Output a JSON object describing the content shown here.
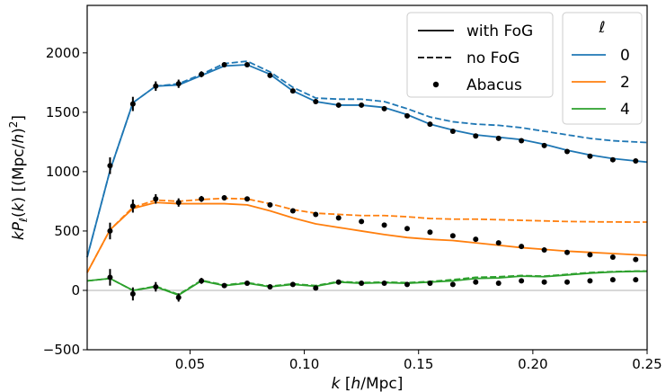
{
  "chart_data": {
    "type": "line",
    "xlabel": "k [h/Mpc]",
    "ylabel": "kP_ℓ(k) [(Mpc/h)^2]",
    "xlim": [
      0.005,
      0.25
    ],
    "ylim": [
      -500,
      2400
    ],
    "xticks": [
      0.05,
      0.1,
      0.15,
      0.2,
      0.25
    ],
    "xtick_labels": [
      "0.05",
      "0.10",
      "0.15",
      "0.20",
      "0.25"
    ],
    "yticks": [
      -500,
      0,
      500,
      1000,
      1500,
      2000
    ],
    "ytick_labels": [
      "−500",
      "0",
      "500",
      "1000",
      "1500",
      "2000"
    ],
    "grid": false,
    "reference_line_y": 0,
    "legend_style": {
      "title": "",
      "placement": "top-right",
      "entries": [
        {
          "label": "with FoG",
          "style": "solid"
        },
        {
          "label": "no FoG",
          "style": "dashed"
        },
        {
          "label": "Abacus",
          "style": "dot"
        }
      ]
    },
    "legend_ell": {
      "title": "ℓ",
      "placement": "top-right",
      "entries": [
        {
          "label": "0",
          "color": "#1f77b4"
        },
        {
          "label": "2",
          "color": "#ff7f0e"
        },
        {
          "label": "4",
          "color": "#2ca02c"
        }
      ]
    },
    "series": [
      {
        "name": "ℓ=0 with FoG",
        "ell": "0",
        "style": "solid",
        "color": "#1f77b4",
        "x": [
          0.005,
          0.015,
          0.025,
          0.035,
          0.045,
          0.055,
          0.065,
          0.075,
          0.085,
          0.095,
          0.105,
          0.115,
          0.125,
          0.135,
          0.145,
          0.155,
          0.165,
          0.175,
          0.185,
          0.195,
          0.205,
          0.215,
          0.225,
          0.235,
          0.245,
          0.25
        ],
        "y": [
          280,
          1010,
          1580,
          1720,
          1730,
          1810,
          1890,
          1900,
          1820,
          1680,
          1590,
          1560,
          1560,
          1540,
          1480,
          1400,
          1350,
          1310,
          1290,
          1270,
          1230,
          1180,
          1140,
          1110,
          1090,
          1080
        ]
      },
      {
        "name": "ℓ=0 no FoG",
        "ell": "0",
        "style": "dashed",
        "color": "#1f77b4",
        "x": [
          0.005,
          0.015,
          0.025,
          0.035,
          0.045,
          0.055,
          0.065,
          0.075,
          0.085,
          0.095,
          0.105,
          0.115,
          0.125,
          0.135,
          0.145,
          0.155,
          0.165,
          0.175,
          0.185,
          0.195,
          0.205,
          0.215,
          0.225,
          0.235,
          0.245,
          0.25
        ],
        "y": [
          280,
          1010,
          1580,
          1720,
          1740,
          1820,
          1910,
          1930,
          1840,
          1710,
          1620,
          1610,
          1610,
          1590,
          1530,
          1460,
          1420,
          1400,
          1390,
          1370,
          1340,
          1310,
          1280,
          1260,
          1250,
          1245
        ]
      },
      {
        "name": "ℓ=2 with FoG",
        "ell": "2",
        "style": "solid",
        "color": "#ff7f0e",
        "x": [
          0.005,
          0.015,
          0.025,
          0.035,
          0.045,
          0.055,
          0.065,
          0.075,
          0.085,
          0.095,
          0.105,
          0.115,
          0.125,
          0.135,
          0.145,
          0.155,
          0.165,
          0.175,
          0.185,
          0.195,
          0.205,
          0.215,
          0.225,
          0.235,
          0.245,
          0.25
        ],
        "y": [
          150,
          510,
          690,
          740,
          730,
          730,
          730,
          720,
          670,
          610,
          560,
          530,
          500,
          470,
          445,
          430,
          420,
          400,
          380,
          360,
          345,
          330,
          320,
          310,
          300,
          295
        ]
      },
      {
        "name": "ℓ=2 no FoG",
        "ell": "2",
        "style": "dashed",
        "color": "#ff7f0e",
        "x": [
          0.005,
          0.015,
          0.025,
          0.035,
          0.045,
          0.055,
          0.065,
          0.075,
          0.085,
          0.095,
          0.105,
          0.115,
          0.125,
          0.135,
          0.145,
          0.155,
          0.165,
          0.175,
          0.185,
          0.195,
          0.205,
          0.215,
          0.225,
          0.235,
          0.245,
          0.25
        ],
        "y": [
          150,
          510,
          700,
          760,
          750,
          765,
          775,
          770,
          730,
          680,
          650,
          640,
          630,
          630,
          620,
          605,
          600,
          600,
          595,
          590,
          585,
          580,
          578,
          576,
          575,
          575
        ]
      },
      {
        "name": "ℓ=4 with FoG",
        "ell": "4",
        "style": "solid",
        "color": "#2ca02c",
        "x": [
          0.005,
          0.015,
          0.025,
          0.035,
          0.045,
          0.055,
          0.065,
          0.075,
          0.085,
          0.095,
          0.105,
          0.115,
          0.125,
          0.135,
          0.145,
          0.155,
          0.165,
          0.175,
          0.185,
          0.195,
          0.205,
          0.215,
          0.225,
          0.235,
          0.245,
          0.25
        ],
        "y": [
          80,
          100,
          0,
          30,
          -40,
          80,
          40,
          60,
          30,
          50,
          35,
          70,
          60,
          65,
          60,
          70,
          80,
          100,
          105,
          120,
          115,
          130,
          145,
          155,
          160,
          160
        ]
      },
      {
        "name": "ℓ=4 no FoG",
        "ell": "4",
        "style": "dashed",
        "color": "#2ca02c",
        "x": [
          0.005,
          0.015,
          0.025,
          0.035,
          0.045,
          0.055,
          0.065,
          0.075,
          0.085,
          0.095,
          0.105,
          0.115,
          0.125,
          0.135,
          0.145,
          0.155,
          0.165,
          0.175,
          0.185,
          0.195,
          0.205,
          0.215,
          0.225,
          0.235,
          0.245,
          0.25
        ],
        "y": [
          80,
          100,
          0,
          35,
          -35,
          85,
          45,
          65,
          35,
          55,
          40,
          75,
          65,
          70,
          65,
          75,
          90,
          110,
          115,
          125,
          120,
          135,
          150,
          158,
          162,
          162
        ]
      }
    ],
    "points": [
      {
        "name": "Abacus ℓ=0",
        "ell": "0",
        "color": "#000000",
        "x": [
          0.015,
          0.025,
          0.035,
          0.045,
          0.055,
          0.065,
          0.075,
          0.085,
          0.095,
          0.105,
          0.115,
          0.125,
          0.135,
          0.145,
          0.155,
          0.165,
          0.175,
          0.185,
          0.195,
          0.205,
          0.215,
          0.225,
          0.235,
          0.245
        ],
        "y": [
          1050,
          1570,
          1720,
          1740,
          1820,
          1900,
          1900,
          1810,
          1680,
          1590,
          1560,
          1560,
          1530,
          1470,
          1400,
          1340,
          1300,
          1280,
          1260,
          1220,
          1170,
          1130,
          1100,
          1090
        ],
        "err": [
          70,
          60,
          40,
          35,
          25,
          20,
          18,
          15,
          12,
          10,
          10,
          9,
          8,
          8,
          7,
          7,
          6,
          6,
          6,
          5,
          5,
          5,
          5,
          5
        ]
      },
      {
        "name": "Abacus ℓ=2",
        "ell": "2",
        "color": "#000000",
        "x": [
          0.015,
          0.025,
          0.035,
          0.045,
          0.055,
          0.065,
          0.075,
          0.085,
          0.095,
          0.105,
          0.115,
          0.125,
          0.135,
          0.145,
          0.155,
          0.165,
          0.175,
          0.185,
          0.195,
          0.205,
          0.215,
          0.225,
          0.235,
          0.245
        ],
        "y": [
          500,
          710,
          770,
          740,
          770,
          780,
          770,
          720,
          670,
          640,
          610,
          580,
          550,
          520,
          490,
          460,
          430,
          400,
          370,
          340,
          320,
          300,
          280,
          260
        ],
        "err": [
          70,
          55,
          40,
          35,
          25,
          20,
          18,
          15,
          12,
          10,
          10,
          9,
          8,
          8,
          7,
          7,
          6,
          6,
          6,
          5,
          5,
          5,
          5,
          5
        ]
      },
      {
        "name": "Abacus ℓ=4",
        "ell": "4",
        "color": "#000000",
        "x": [
          0.015,
          0.025,
          0.035,
          0.045,
          0.055,
          0.065,
          0.075,
          0.085,
          0.095,
          0.105,
          0.115,
          0.125,
          0.135,
          0.145,
          0.155,
          0.165,
          0.175,
          0.185,
          0.195,
          0.205,
          0.215,
          0.225,
          0.235,
          0.245
        ],
        "y": [
          110,
          -30,
          30,
          -60,
          80,
          40,
          60,
          30,
          50,
          20,
          70,
          60,
          60,
          50,
          60,
          50,
          70,
          60,
          80,
          70,
          70,
          80,
          90,
          90
        ],
        "err": [
          70,
          55,
          40,
          35,
          25,
          20,
          18,
          15,
          12,
          10,
          10,
          9,
          8,
          8,
          7,
          7,
          6,
          6,
          6,
          5,
          5,
          5,
          5,
          5
        ]
      }
    ]
  }
}
